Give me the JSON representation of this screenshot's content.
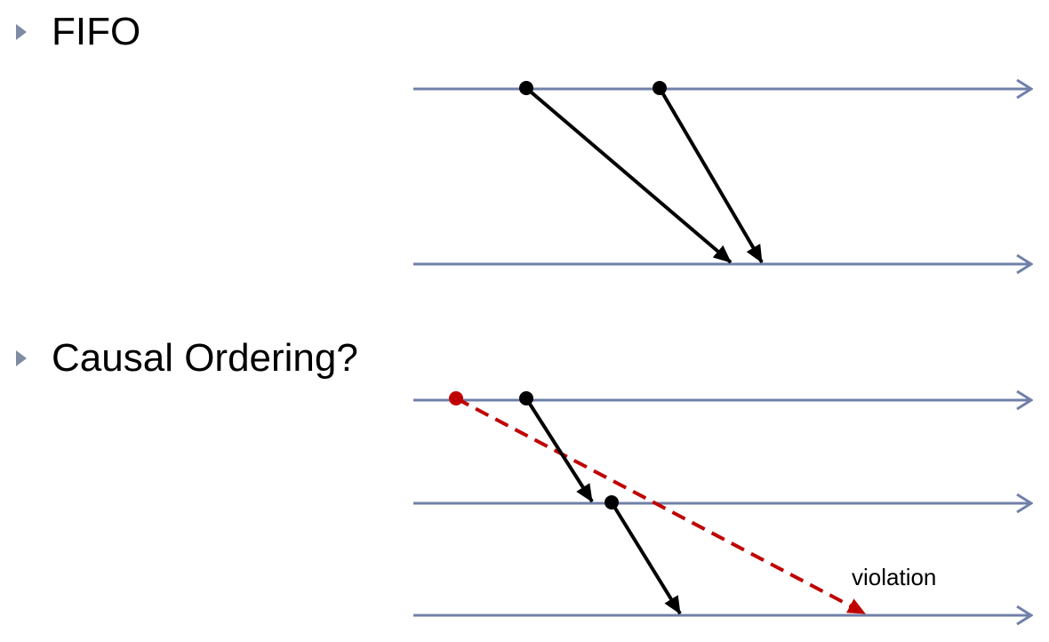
{
  "bullets": [
    {
      "label": "FIFO"
    },
    {
      "label": "Causal Ordering?"
    }
  ],
  "annotations": {
    "violation": "violation"
  },
  "colors": {
    "timeline": "#7080a8",
    "message": "#000000",
    "violation": "#c00000",
    "bullet_marker": "#7f8aa3"
  },
  "icons": {
    "bullet_marker": "triangle-right-icon",
    "event": "dot-icon",
    "arrowhead": "arrowhead-icon"
  }
}
